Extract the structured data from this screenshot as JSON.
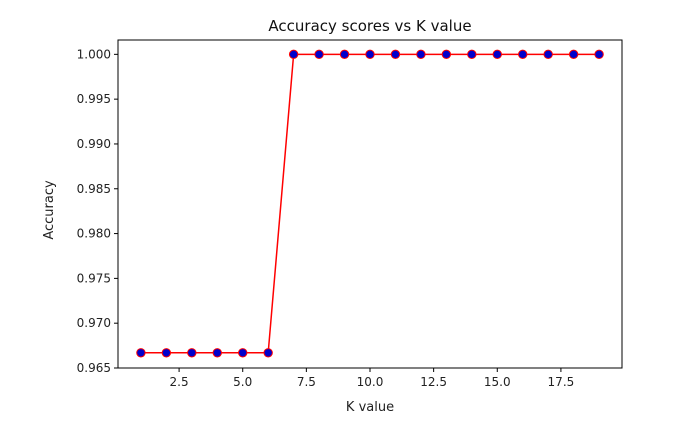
{
  "chart_data": {
    "type": "line",
    "title": "Accuracy scores vs K value",
    "xlabel": "K value",
    "ylabel": "Accuracy",
    "xlim": [
      0.1,
      19.9
    ],
    "ylim": [
      0.965,
      1.0016
    ],
    "x_ticks": [
      2.5,
      5.0,
      7.5,
      10.0,
      12.5,
      15.0,
      17.5
    ],
    "x_tick_labels": [
      "2.5",
      "5.0",
      "7.5",
      "10.0",
      "12.5",
      "15.0",
      "17.5"
    ],
    "y_ticks": [
      0.965,
      0.97,
      0.975,
      0.98,
      0.985,
      0.99,
      0.995,
      1.0
    ],
    "y_tick_labels": [
      "0.965",
      "0.970",
      "0.975",
      "0.980",
      "0.985",
      "0.990",
      "0.995",
      "1.000"
    ],
    "grid": false,
    "line_color": "#ff0000",
    "marker_color": "#0000cc",
    "series": [
      {
        "x": [
          1,
          2,
          3,
          4,
          5,
          6,
          7,
          8,
          9,
          10,
          11,
          12,
          13,
          14,
          15,
          16,
          17,
          18,
          19
        ],
        "y": [
          0.9667,
          0.9667,
          0.9667,
          0.9667,
          0.9667,
          0.9667,
          1.0,
          1.0,
          1.0,
          1.0,
          1.0,
          1.0,
          1.0,
          1.0,
          1.0,
          1.0,
          1.0,
          1.0,
          1.0
        ]
      }
    ]
  }
}
